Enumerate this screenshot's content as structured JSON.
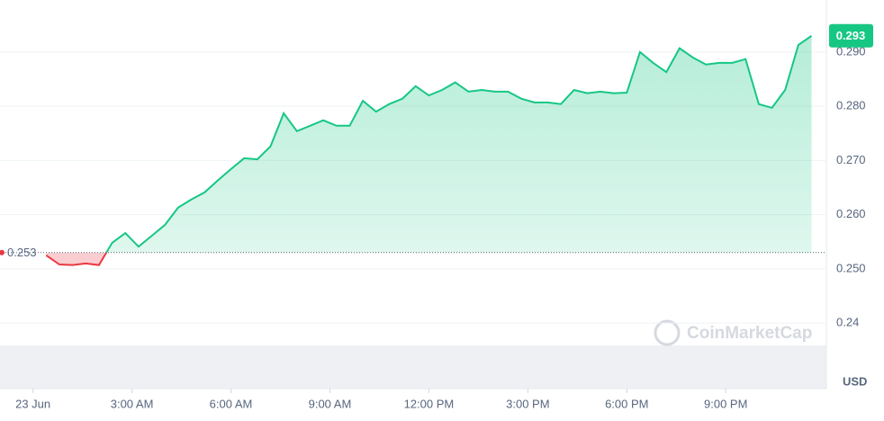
{
  "chart_data": {
    "type": "line",
    "x": [
      0.4,
      0.8,
      1.2,
      1.6,
      2.0,
      2.4,
      2.8,
      3.2,
      3.6,
      4.0,
      4.4,
      4.8,
      5.2,
      5.6,
      6.0,
      6.4,
      6.8,
      7.2,
      7.6,
      8.0,
      8.4,
      8.8,
      9.2,
      9.6,
      10.0,
      10.4,
      10.8,
      11.2,
      11.6,
      12.0,
      12.4,
      12.8,
      13.2,
      13.6,
      14.0,
      14.4,
      14.8,
      15.2,
      15.6,
      16.0,
      16.4,
      16.8,
      17.2,
      17.6,
      18.0,
      18.4,
      18.8,
      19.2,
      19.6,
      20.0,
      20.4,
      20.8,
      21.2,
      21.6,
      22.0,
      22.4,
      22.8,
      23.2,
      23.6
    ],
    "values": [
      0.2525,
      0.2508,
      0.2507,
      0.251,
      0.2507,
      0.2548,
      0.2566,
      0.2541,
      0.2561,
      0.2581,
      0.2613,
      0.2628,
      0.2641,
      0.2663,
      0.2684,
      0.2704,
      0.2702,
      0.2726,
      0.2787,
      0.2754,
      0.2764,
      0.2774,
      0.2764,
      0.2764,
      0.281,
      0.279,
      0.2804,
      0.2814,
      0.2837,
      0.282,
      0.283,
      0.2844,
      0.2827,
      0.283,
      0.2827,
      0.2827,
      0.2814,
      0.2807,
      0.2807,
      0.2804,
      0.283,
      0.2824,
      0.2827,
      0.2824,
      0.2825,
      0.29,
      0.288,
      0.2863,
      0.2907,
      0.289,
      0.2877,
      0.288,
      0.288,
      0.2887,
      0.2804,
      0.2797,
      0.283,
      0.2913,
      0.293
    ],
    "up_color": "#16c784",
    "down_color": "#ea3943",
    "baseline": 0.253,
    "last_price": 0.293,
    "xlim": [
      -1,
      24.05
    ],
    "xticks": [
      {
        "value": 0,
        "label": "23 Jun"
      },
      {
        "value": 3,
        "label": "3:00 AM"
      },
      {
        "value": 6,
        "label": "6:00 AM"
      },
      {
        "value": 9,
        "label": "9:00 AM"
      },
      {
        "value": 12,
        "label": "12:00 PM"
      },
      {
        "value": 15,
        "label": "3:00 PM"
      },
      {
        "value": 18,
        "label": "6:00 PM"
      },
      {
        "value": 21,
        "label": "9:00 PM"
      }
    ],
    "ylim": [
      0.2279,
      0.2996
    ],
    "yticks": [
      0.24,
      {
        "value": 0.25,
        "label": "0.250"
      },
      {
        "value": 0.26,
        "label": "0.260"
      },
      {
        "value": 0.27,
        "label": "0.270"
      },
      {
        "value": 0.28,
        "label": "0.280"
      },
      {
        "value": 0.29,
        "label": "0.290"
      }
    ],
    "grid": true,
    "currency": "USD",
    "watermark": "CoinMarketCap"
  }
}
